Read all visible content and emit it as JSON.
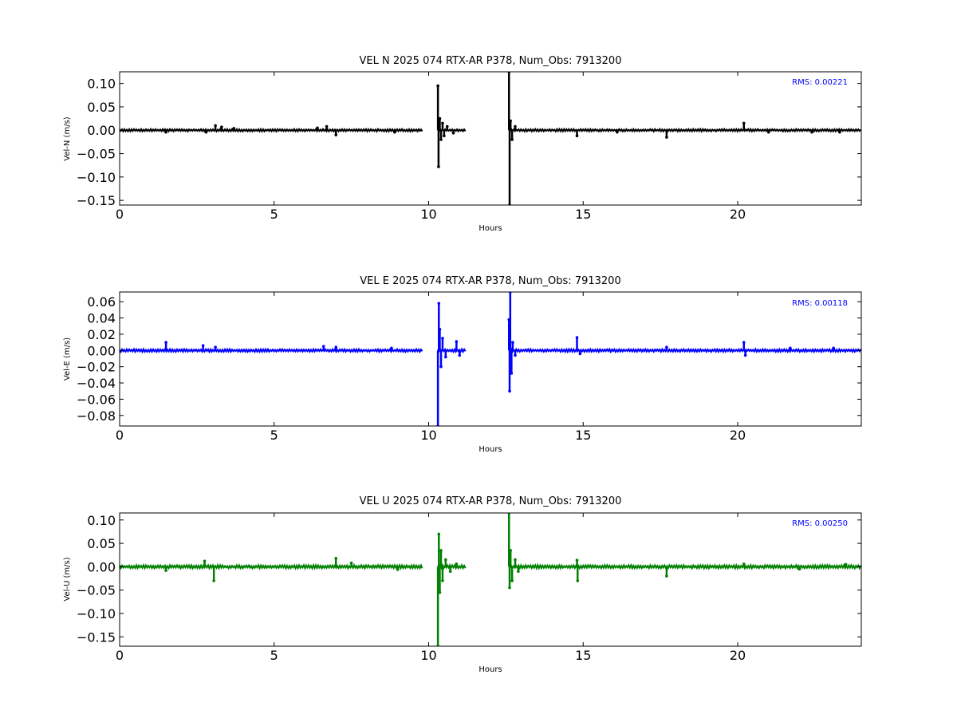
{
  "chart_data": [
    {
      "type": "line",
      "title": "VEL N 2025 074 RTX-AR  P378, Num_Obs: 7913200",
      "xlabel": "Hours",
      "ylabel": "Vel-N (m/s)",
      "xlim": [
        0,
        24
      ],
      "ylim": [
        -0.16,
        0.125
      ],
      "xticks": [
        0,
        5,
        10,
        15,
        20
      ],
      "xtick_labels": [
        "0",
        "5",
        "10",
        "15",
        "20"
      ],
      "yticks": [
        0.1,
        0.05,
        0.0,
        -0.05,
        -0.1,
        -0.15
      ],
      "ytick_labels": [
        "0.10",
        "0.05",
        "0.00",
        "−0.05",
        "−0.10",
        "−0.15"
      ],
      "rms_label": "RMS:  0.00221",
      "grid": false,
      "series": [
        {
          "color": "#000000",
          "noise": 0.0018,
          "segments": [
            [
              0,
              9.8
            ],
            [
              10.3,
              11.2
            ],
            [
              12.6,
              24
            ]
          ],
          "spikes": [
            [
              1.5,
              -0.004
            ],
            [
              2.8,
              -0.004
            ],
            [
              3.1,
              0.01
            ],
            [
              3.3,
              0.007
            ],
            [
              3.7,
              0.004
            ],
            [
              6.4,
              0.005
            ],
            [
              6.7,
              0.008
            ],
            [
              7.0,
              -0.01
            ],
            [
              8.9,
              -0.004
            ],
            [
              10.3,
              0.095
            ],
            [
              10.32,
              -0.078
            ],
            [
              10.36,
              0.025
            ],
            [
              10.4,
              -0.02
            ],
            [
              10.45,
              0.015
            ],
            [
              10.5,
              -0.012
            ],
            [
              10.6,
              0.008
            ],
            [
              10.8,
              -0.006
            ],
            [
              12.6,
              0.125
            ],
            [
              12.62,
              -0.16
            ],
            [
              12.65,
              0.02
            ],
            [
              12.7,
              -0.02
            ],
            [
              12.8,
              0.008
            ],
            [
              14.8,
              -0.012
            ],
            [
              16.1,
              -0.004
            ],
            [
              17.7,
              -0.015
            ],
            [
              20.2,
              0.015
            ],
            [
              21.0,
              -0.004
            ],
            [
              22.4,
              -0.004
            ],
            [
              23.3,
              -0.004
            ]
          ]
        }
      ]
    },
    {
      "type": "line",
      "title": "VEL E 2025 074 RTX-AR  P378, Num_Obs: 7913200",
      "xlabel": "Hours",
      "ylabel": "Vel-E (m/s)",
      "xlim": [
        0,
        24
      ],
      "ylim": [
        -0.093,
        0.072
      ],
      "xticks": [
        0,
        5,
        10,
        15,
        20
      ],
      "xtick_labels": [
        "0",
        "5",
        "10",
        "15",
        "20"
      ],
      "yticks": [
        0.06,
        0.04,
        0.02,
        0.0,
        -0.02,
        -0.04,
        -0.06,
        -0.08
      ],
      "ytick_labels": [
        "0.06",
        "0.04",
        "0.02",
        "0.00",
        "−0.02",
        "−0.04",
        "−0.06",
        "−0.08"
      ],
      "rms_label": "RMS:  0.00118",
      "grid": false,
      "series": [
        {
          "color": "#0000ff",
          "noise": 0.0012,
          "segments": [
            [
              0,
              9.8
            ],
            [
              10.3,
              11.2
            ],
            [
              12.6,
              24
            ]
          ],
          "spikes": [
            [
              1.5,
              0.01
            ],
            [
              2.7,
              0.006
            ],
            [
              3.1,
              0.004
            ],
            [
              6.6,
              0.005
            ],
            [
              7.0,
              0.004
            ],
            [
              8.8,
              0.003
            ],
            [
              10.3,
              -0.093
            ],
            [
              10.33,
              0.058
            ],
            [
              10.36,
              0.026
            ],
            [
              10.4,
              -0.02
            ],
            [
              10.45,
              0.015
            ],
            [
              10.55,
              -0.008
            ],
            [
              10.9,
              0.011
            ],
            [
              11.0,
              -0.006
            ],
            [
              12.6,
              0.038
            ],
            [
              12.62,
              -0.05
            ],
            [
              12.64,
              0.072
            ],
            [
              12.68,
              -0.028
            ],
            [
              12.72,
              0.01
            ],
            [
              12.8,
              -0.006
            ],
            [
              14.8,
              0.016
            ],
            [
              14.9,
              -0.004
            ],
            [
              17.7,
              0.004
            ],
            [
              20.2,
              0.01
            ],
            [
              20.25,
              -0.006
            ],
            [
              21.7,
              0.003
            ],
            [
              23.1,
              0.003
            ]
          ]
        }
      ]
    },
    {
      "type": "line",
      "title": "VEL U 2025 074 RTX-AR  P378, Num_Obs: 7913200",
      "xlabel": "Hours",
      "ylabel": "Vel-U (m/s)",
      "xlim": [
        0,
        24
      ],
      "ylim": [
        -0.17,
        0.115
      ],
      "xticks": [
        0,
        5,
        10,
        15,
        20
      ],
      "xtick_labels": [
        "0",
        "5",
        "10",
        "15",
        "20"
      ],
      "yticks": [
        0.1,
        0.05,
        0.0,
        -0.05,
        -0.1,
        -0.15
      ],
      "ytick_labels": [
        "0.10",
        "0.05",
        "0.00",
        "−0.05",
        "−0.10",
        "−0.15"
      ],
      "rms_label": "RMS:  0.00250",
      "grid": false,
      "series": [
        {
          "color": "#008000",
          "noise": 0.0025,
          "segments": [
            [
              0,
              9.8
            ],
            [
              10.3,
              11.2
            ],
            [
              12.6,
              24
            ]
          ],
          "spikes": [
            [
              1.5,
              -0.008
            ],
            [
              2.75,
              0.012
            ],
            [
              3.05,
              -0.03
            ],
            [
              7.0,
              0.018
            ],
            [
              7.5,
              0.008
            ],
            [
              9.0,
              -0.006
            ],
            [
              10.3,
              -0.17
            ],
            [
              10.33,
              0.07
            ],
            [
              10.36,
              -0.055
            ],
            [
              10.4,
              0.035
            ],
            [
              10.45,
              -0.03
            ],
            [
              10.55,
              0.015
            ],
            [
              10.7,
              -0.01
            ],
            [
              10.9,
              0.006
            ],
            [
              12.6,
              0.115
            ],
            [
              12.62,
              -0.045
            ],
            [
              12.65,
              0.035
            ],
            [
              12.7,
              -0.03
            ],
            [
              12.8,
              0.015
            ],
            [
              12.9,
              -0.01
            ],
            [
              14.8,
              0.014
            ],
            [
              14.82,
              -0.03
            ],
            [
              17.7,
              -0.02
            ],
            [
              20.2,
              0.006
            ],
            [
              22.0,
              -0.005
            ],
            [
              23.5,
              0.005
            ]
          ]
        }
      ]
    }
  ]
}
